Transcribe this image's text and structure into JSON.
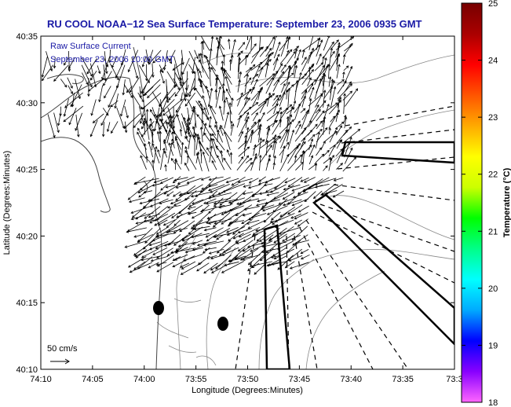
{
  "title": "RU COOL  NOAA−12  Sea Surface Temperature:  September 23, 2006 0935 GMT",
  "legend": {
    "line1": "Raw Surface Current",
    "line2": "September 23, 2006 10:00 GMT"
  },
  "scale_label": "50 cm/s",
  "xaxis": {
    "label": "Longitude (Degrees:Minutes)",
    "ticks": [
      "74:10",
      "74:05",
      "74:00",
      "73:55",
      "73:50",
      "73:45",
      "73:40",
      "73:35",
      "73:3"
    ]
  },
  "yaxis": {
    "label": "Latitude (Degrees:Minutes)",
    "ticks": [
      "40:35",
      "40:30",
      "40:25",
      "40:20",
      "40:15",
      "40:10"
    ]
  },
  "colorbar": {
    "label": "Temperature (°C)",
    "ticks": [
      "25",
      "24",
      "23",
      "22",
      "21",
      "20",
      "19",
      "18"
    ],
    "min": 18,
    "max": 25,
    "stops": [
      "#ff66ff",
      "#8800ff",
      "#0000ff",
      "#00aaff",
      "#00ffff",
      "#00ff88",
      "#00ff00",
      "#ccff00",
      "#ffff00",
      "#ffaa00",
      "#ff5500",
      "#ff0000",
      "#aa0000",
      "#770000"
    ]
  }
}
